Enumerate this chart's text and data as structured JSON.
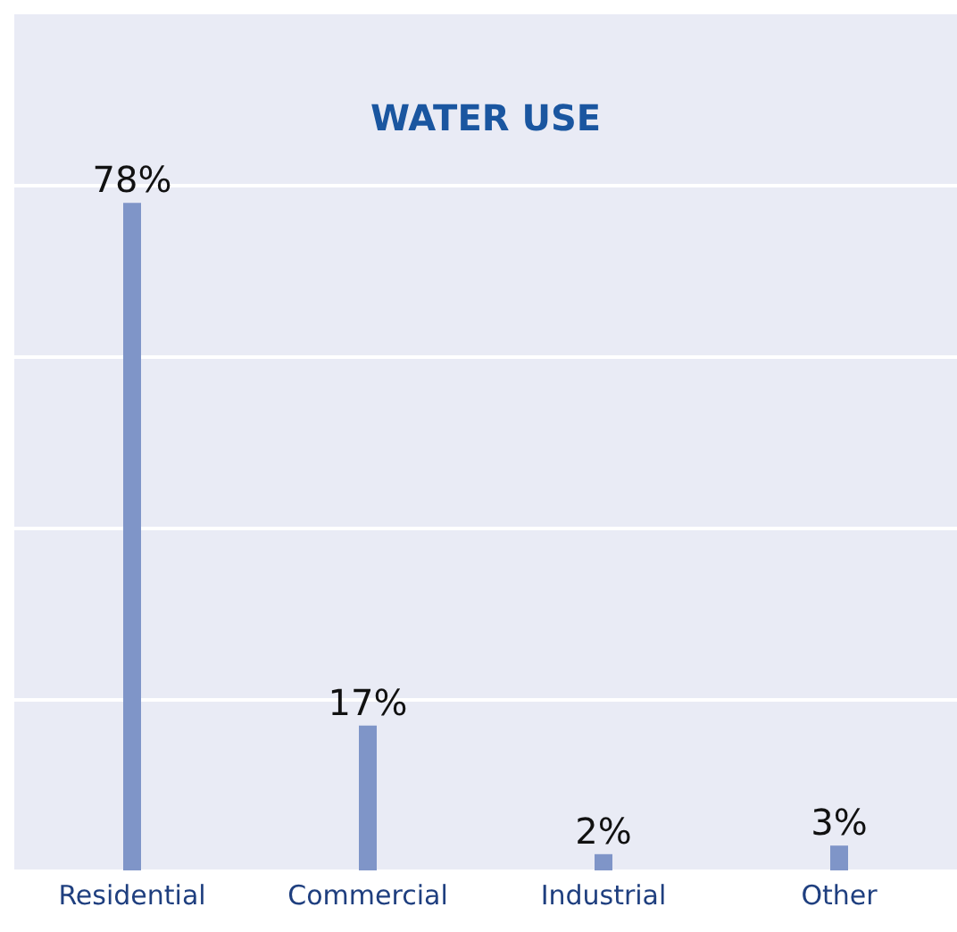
{
  "chart_data": {
    "type": "bar",
    "title": "WATER USE",
    "categories": [
      "Residential",
      "Commercial",
      "Industrial",
      "Other"
    ],
    "values": [
      78,
      17,
      2,
      3
    ],
    "value_labels": [
      "78%",
      "17%",
      "2%",
      "3%"
    ],
    "color": "#7f95c8",
    "ylim": [
      0,
      100
    ],
    "yticks": [
      {
        "value": 0,
        "label": null
      },
      {
        "value": 20,
        "label": null
      },
      {
        "value": 40,
        "label": null
      },
      {
        "value": 60,
        "label": null
      },
      {
        "value": 80,
        "label": null
      }
    ],
    "grid": "y",
    "tick_labels": "x"
  }
}
